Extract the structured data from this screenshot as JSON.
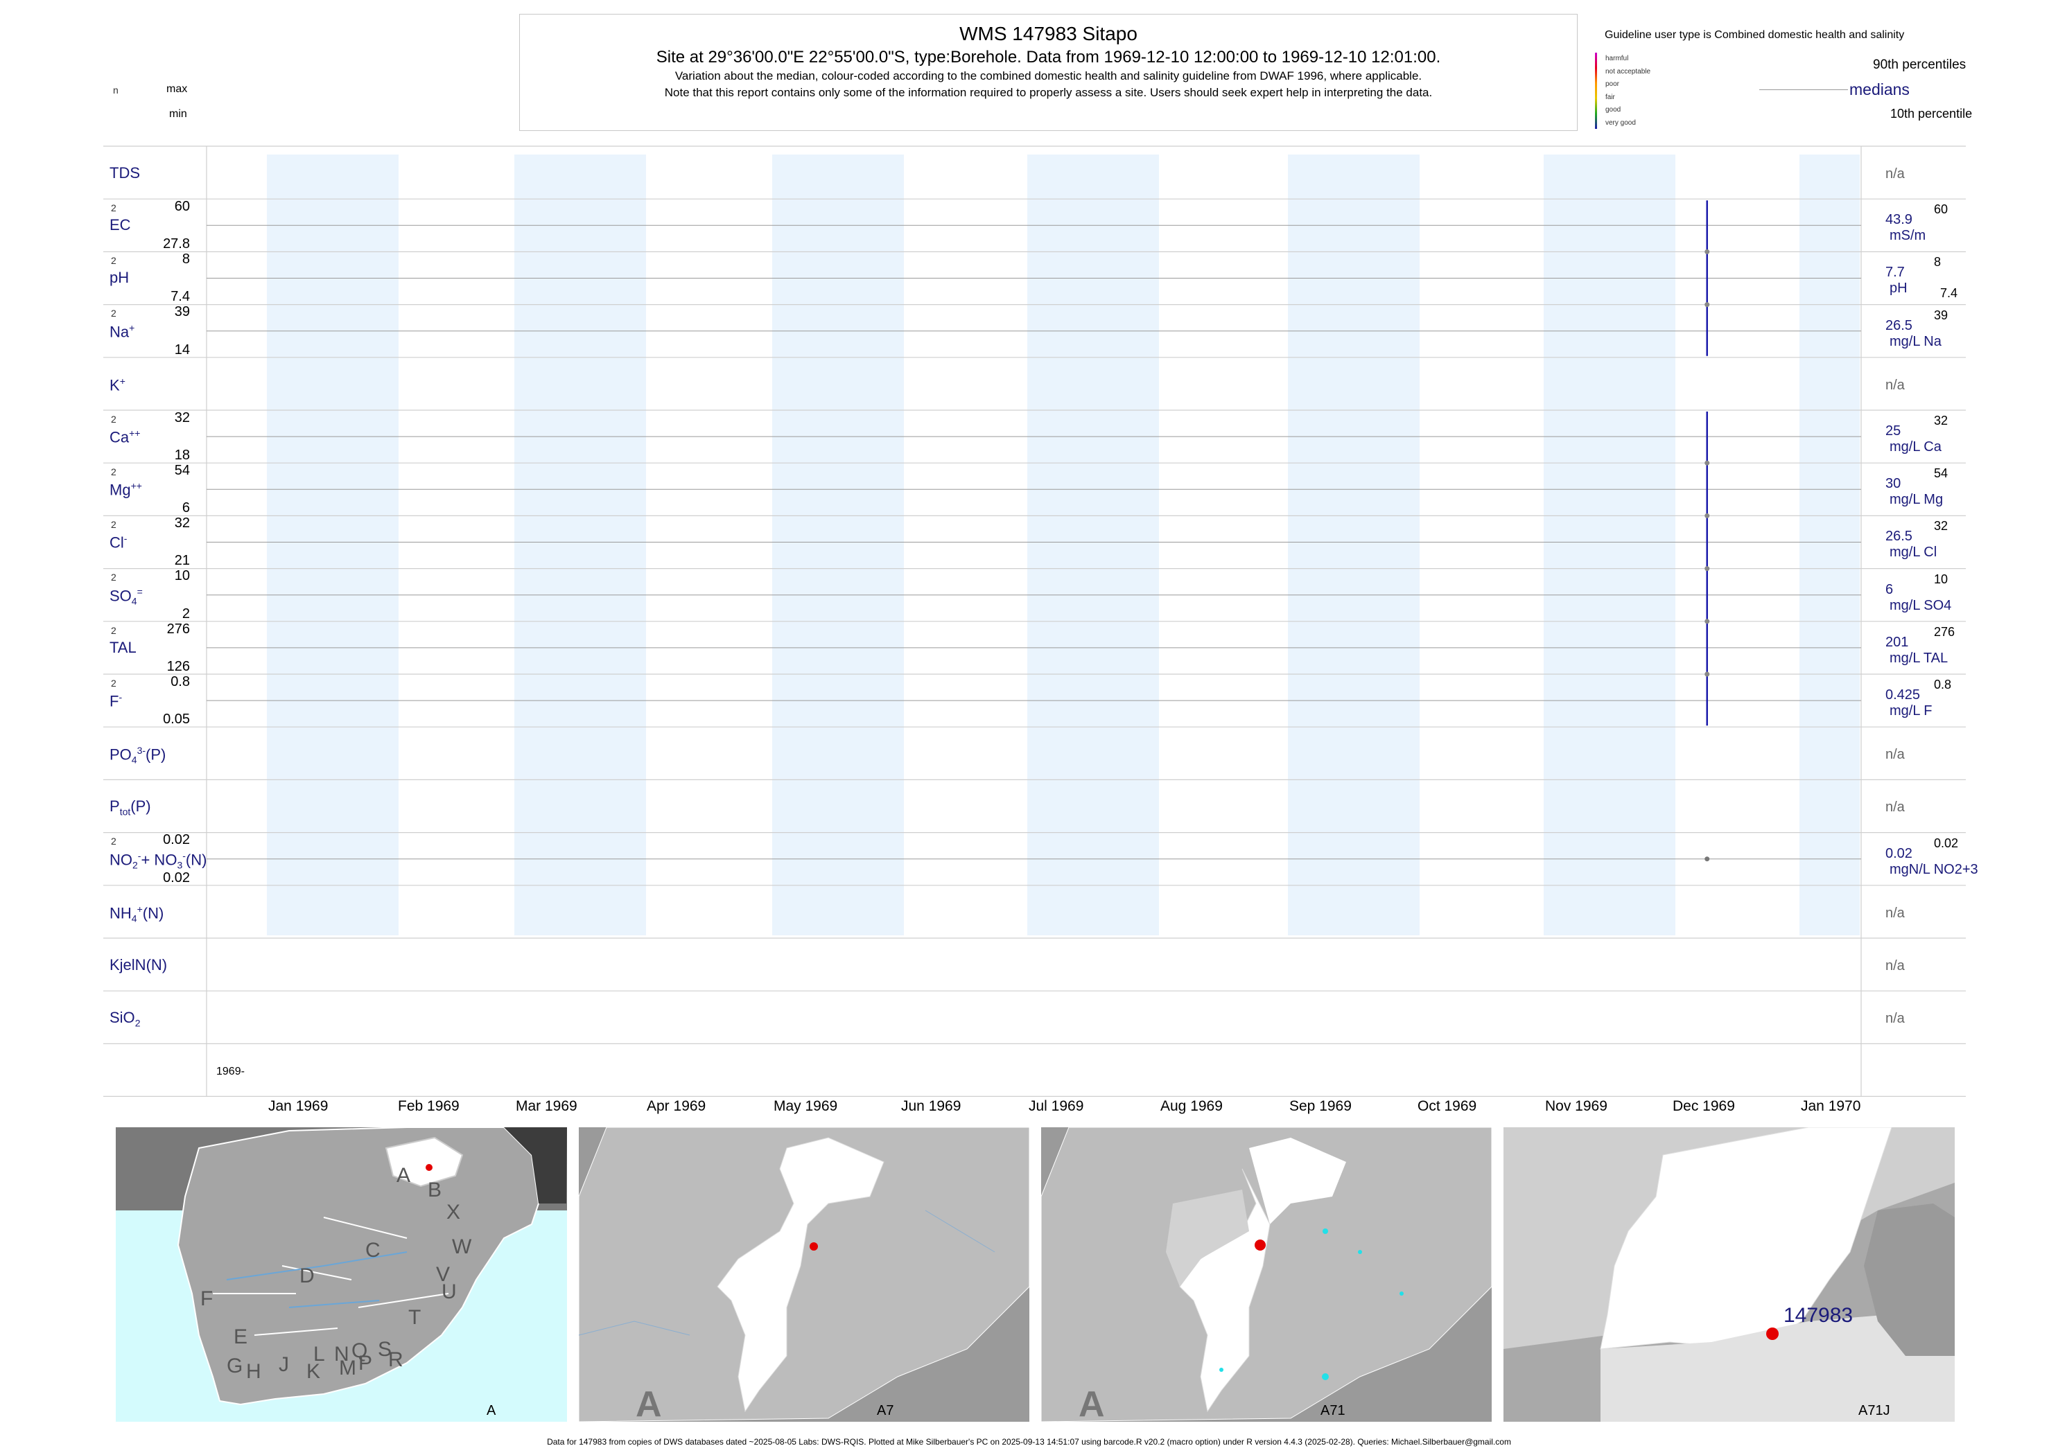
{
  "header": {
    "title": "WMS 147983  Sitapo",
    "subtitle": "Site at 29°36'00.0\"E 22°55'00.0\"S, type:Borehole.  Data from 1969-12-10 12:00:00 to 1969-12-10 12:01:00.",
    "note1": "Variation about the median,  colour-coded according to the combined domestic health and salinity guideline from DWAF 1996, where applicable.",
    "note2": "Note that this report contains only some of the information required to properly assess a site. Users should seek expert help in interpreting the data.",
    "key_n": "n",
    "key_max": "max",
    "key_min": "min"
  },
  "legend": {
    "guideline_text": "Guideline user type is Combined domestic health and salinity",
    "classes": [
      {
        "label": "harmful",
        "color": "#cc00cc"
      },
      {
        "label": "not acceptable",
        "color": "#e8001e"
      },
      {
        "label": "poor",
        "color": "#ff9900"
      },
      {
        "label": "fair",
        "color": "#e8c800"
      },
      {
        "label": "good",
        "color": "#22aa22"
      },
      {
        "label": "very good",
        "color": "#1a1aaa"
      }
    ],
    "p90": "90th percentiles",
    "medians": "medians",
    "p10": "10th percentile"
  },
  "chart_data": {
    "type": "table",
    "x_start_label": "1969-",
    "months": [
      "Jan 1969",
      "Feb 1969",
      "Mar 1969",
      "Apr 1969",
      "May 1969",
      "Jun 1969",
      "Jul 1969",
      "Aug 1969",
      "Sep 1969",
      "Oct 1969",
      "Nov 1969",
      "Dec 1969",
      "Jan 1970"
    ],
    "sample_date": "1969-12-10",
    "rows": [
      {
        "name": "TDS",
        "label_html": "TDS",
        "n": "",
        "max": "",
        "min": "",
        "median": "n/a",
        "unit": "",
        "p90": "",
        "p10": "",
        "has_data": false
      },
      {
        "name": "EC",
        "label_html": "EC",
        "n": "2",
        "max": "60",
        "min": "27.8",
        "median": "43.9",
        "unit": "mS/m",
        "p90": "60",
        "p10": "",
        "has_data": true
      },
      {
        "name": "pH",
        "label_html": "pH",
        "n": "2",
        "max": "8",
        "min": "7.4",
        "median": "7.7",
        "unit": "pH",
        "p90": "8",
        "p10": "7.4",
        "has_data": true
      },
      {
        "name": "Na",
        "label_html": "Na<sup>+</sup>",
        "n": "2",
        "max": "39",
        "min": "14",
        "median": "26.5",
        "unit": "mg/L Na",
        "p90": "39",
        "p10": "",
        "has_data": true
      },
      {
        "name": "K",
        "label_html": "K<sup>+</sup>",
        "n": "",
        "max": "",
        "min": "",
        "median": "n/a",
        "unit": "",
        "p90": "",
        "p10": "",
        "has_data": false
      },
      {
        "name": "Ca",
        "label_html": "Ca<sup>++</sup>",
        "n": "2",
        "max": "32",
        "min": "18",
        "median": "25",
        "unit": "mg/L Ca",
        "p90": "32",
        "p10": "",
        "has_data": true
      },
      {
        "name": "Mg",
        "label_html": "Mg<sup>++</sup>",
        "n": "2",
        "max": "54",
        "min": "6",
        "median": "30",
        "unit": "mg/L Mg",
        "p90": "54",
        "p10": "",
        "has_data": true
      },
      {
        "name": "Cl",
        "label_html": "Cl<sup>-</sup>",
        "n": "2",
        "max": "32",
        "min": "21",
        "median": "26.5",
        "unit": "mg/L Cl",
        "p90": "32",
        "p10": "",
        "has_data": true
      },
      {
        "name": "SO4",
        "label_html": "SO<sub>4</sub><sup>=</sup>",
        "n": "2",
        "max": "10",
        "min": "2",
        "median": "6",
        "unit": "mg/L SO4",
        "p90": "10",
        "p10": "",
        "has_data": true
      },
      {
        "name": "TAL",
        "label_html": "TAL",
        "n": "2",
        "max": "276",
        "min": "126",
        "median": "201",
        "unit": "mg/L TAL",
        "p90": "276",
        "p10": "",
        "has_data": true
      },
      {
        "name": "F",
        "label_html": "F<sup>-</sup>",
        "n": "2",
        "max": "0.8",
        "min": "0.05",
        "median": "0.425",
        "unit": "mg/L F",
        "p90": "0.8",
        "p10": "",
        "has_data": true
      },
      {
        "name": "PO4",
        "label_html": "PO<sub>4</sub><sup>3-</sup>(P)",
        "n": "",
        "max": "",
        "min": "",
        "median": "n/a",
        "unit": "",
        "p90": "",
        "p10": "",
        "has_data": false
      },
      {
        "name": "Ptot",
        "label_html": "P<sub>tot</sub>(P)",
        "n": "",
        "max": "",
        "min": "",
        "median": "n/a",
        "unit": "",
        "p90": "",
        "p10": "",
        "has_data": false
      },
      {
        "name": "NO2NO3",
        "label_html": "NO<sub>2</sub><sup>-</sup>+ NO<sub>3</sub><sup>-</sup>(N)",
        "n": "2",
        "max": "0.02",
        "min": "0.02",
        "median": "0.02",
        "unit": "mgN/L NO2+3",
        "p90": "0.02",
        "p10": "",
        "has_data": true,
        "point_only": true
      },
      {
        "name": "NH4",
        "label_html": "NH<sub>4</sub><sup>+</sup>(N)",
        "n": "",
        "max": "",
        "min": "",
        "median": "n/a",
        "unit": "",
        "p90": "",
        "p10": "",
        "has_data": false
      },
      {
        "name": "KjelN",
        "label_html": "KjelN(N)",
        "n": "",
        "max": "",
        "min": "",
        "median": "n/a",
        "unit": "",
        "p90": "",
        "p10": "",
        "has_data": false
      },
      {
        "name": "SiO2",
        "label_html": "SiO<sub>2</sub>",
        "n": "",
        "max": "",
        "min": "",
        "median": "n/a",
        "unit": "",
        "p90": "",
        "p10": "",
        "has_data": false
      }
    ]
  },
  "maps": {
    "map1_label": "A",
    "map2_label": "A7",
    "map3_label": "A71",
    "map4_label": "A71J",
    "big_letter": "A",
    "site_label": "147983",
    "region_letters": [
      "A",
      "B",
      "X",
      "C",
      "W",
      "D",
      "V",
      "U",
      "F",
      "T",
      "E",
      "L",
      "N",
      "Q",
      "S",
      "R",
      "G",
      "H",
      "J",
      "K",
      "M",
      "P"
    ]
  },
  "footer": "Data for 147983 from copies of DWS databases dated ~2025-08-05 Labs: DWS-RQIS. Plotted at Mike Silberbauer's PC on 2025-09-13 14:51:07 using barcode.R v20.2 (macro option) under R version 4.4.3 (2025-02-28). Queries: Michael.Silberbauer@gmail.com"
}
